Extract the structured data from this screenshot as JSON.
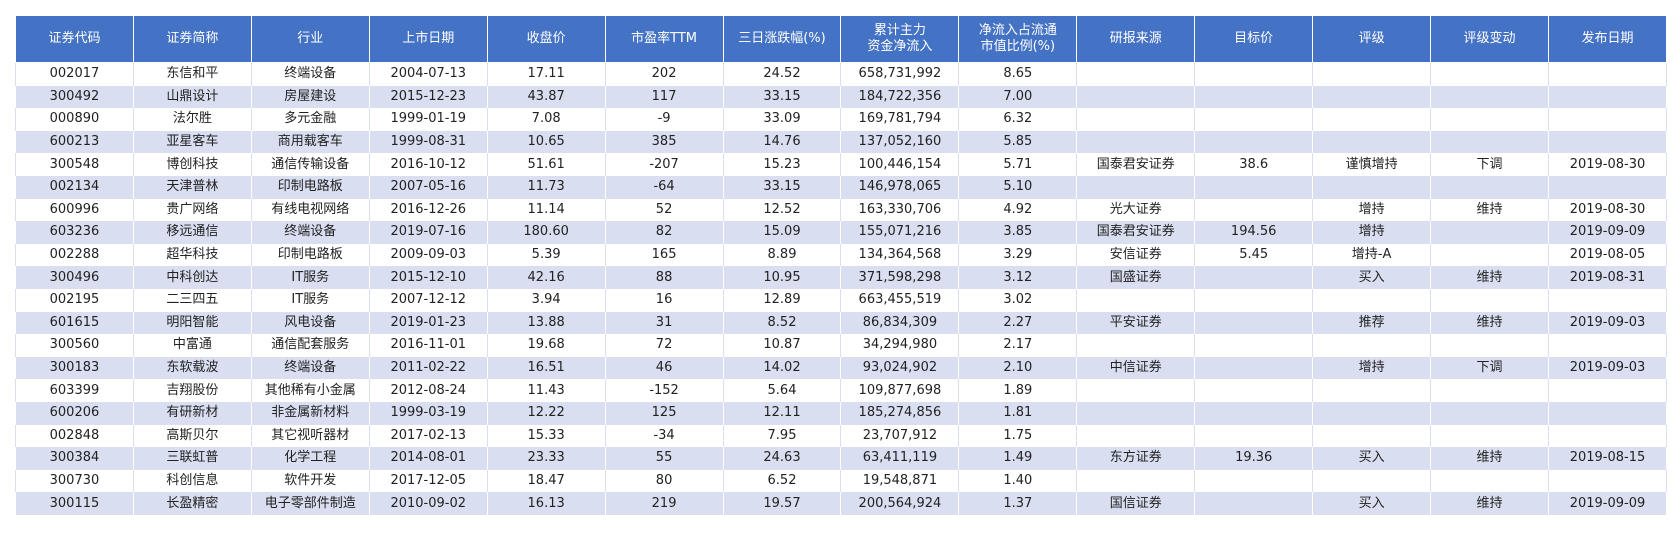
{
  "table": {
    "headers": [
      "证券代码",
      "证券简称",
      "行业",
      "上市日期",
      "收盘价",
      "市盈率TTM",
      "三日涨跌幅(%)",
      "累计主力\n资金净流入",
      "净流入占流通\n市值比例(%)",
      "研报来源",
      "目标价",
      "评级",
      "评级变动",
      "发布日期"
    ],
    "rows": [
      [
        "002017",
        "东信和平",
        "终端设备",
        "2004-07-13",
        "17.11",
        "202",
        "24.52",
        "658,731,992",
        "8.65",
        "",
        "",
        "",
        "",
        ""
      ],
      [
        "300492",
        "山鼎设计",
        "房屋建设",
        "2015-12-23",
        "43.87",
        "117",
        "33.15",
        "184,722,356",
        "7.00",
        "",
        "",
        "",
        "",
        ""
      ],
      [
        "000890",
        "法尔胜",
        "多元金融",
        "1999-01-19",
        "7.08",
        "-9",
        "33.09",
        "169,781,794",
        "6.32",
        "",
        "",
        "",
        "",
        ""
      ],
      [
        "600213",
        "亚星客车",
        "商用载客车",
        "1999-08-31",
        "10.65",
        "385",
        "14.76",
        "137,052,160",
        "5.85",
        "",
        "",
        "",
        "",
        ""
      ],
      [
        "300548",
        "博创科技",
        "通信传输设备",
        "2016-10-12",
        "51.61",
        "-207",
        "15.23",
        "100,446,154",
        "5.71",
        "国泰君安证券",
        "38.6",
        "谨慎增持",
        "下调",
        "2019-08-30"
      ],
      [
        "002134",
        "天津普林",
        "印制电路板",
        "2007-05-16",
        "11.73",
        "-64",
        "33.15",
        "146,978,065",
        "5.10",
        "",
        "",
        "",
        "",
        ""
      ],
      [
        "600996",
        "贵广网络",
        "有线电视网络",
        "2016-12-26",
        "11.14",
        "52",
        "12.52",
        "163,330,706",
        "4.92",
        "光大证券",
        "",
        "增持",
        "维持",
        "2019-08-30"
      ],
      [
        "603236",
        "移远通信",
        "终端设备",
        "2019-07-16",
        "180.60",
        "82",
        "15.09",
        "155,071,216",
        "3.85",
        "国泰君安证券",
        "194.56",
        "增持",
        "",
        "2019-09-09"
      ],
      [
        "002288",
        "超华科技",
        "印制电路板",
        "2009-09-03",
        "5.39",
        "165",
        "8.89",
        "134,364,568",
        "3.29",
        "安信证券",
        "5.45",
        "增持-A",
        "",
        "2019-08-05"
      ],
      [
        "300496",
        "中科创达",
        "IT服务",
        "2015-12-10",
        "42.16",
        "88",
        "10.95",
        "371,598,298",
        "3.12",
        "国盛证券",
        "",
        "买入",
        "维持",
        "2019-08-31"
      ],
      [
        "002195",
        "二三四五",
        "IT服务",
        "2007-12-12",
        "3.94",
        "16",
        "12.89",
        "663,455,519",
        "3.02",
        "",
        "",
        "",
        "",
        ""
      ],
      [
        "601615",
        "明阳智能",
        "风电设备",
        "2019-01-23",
        "13.88",
        "31",
        "8.52",
        "86,834,309",
        "2.27",
        "平安证券",
        "",
        "推荐",
        "维持",
        "2019-09-03"
      ],
      [
        "300560",
        "中富通",
        "通信配套服务",
        "2016-11-01",
        "19.68",
        "72",
        "10.87",
        "34,294,980",
        "2.17",
        "",
        "",
        "",
        "",
        ""
      ],
      [
        "300183",
        "东软载波",
        "终端设备",
        "2011-02-22",
        "16.51",
        "46",
        "14.02",
        "93,024,902",
        "2.10",
        "中信证券",
        "",
        "增持",
        "下调",
        "2019-09-03"
      ],
      [
        "603399",
        "吉翔股份",
        "其他稀有小金属",
        "2012-08-24",
        "11.43",
        "-152",
        "5.64",
        "109,877,698",
        "1.89",
        "",
        "",
        "",
        "",
        ""
      ],
      [
        "600206",
        "有研新材",
        "非金属新材料",
        "1999-03-19",
        "12.22",
        "125",
        "12.11",
        "185,274,856",
        "1.81",
        "",
        "",
        "",
        "",
        ""
      ],
      [
        "002848",
        "高斯贝尔",
        "其它视听器材",
        "2017-02-13",
        "15.33",
        "-34",
        "7.95",
        "23,707,912",
        "1.75",
        "",
        "",
        "",
        "",
        ""
      ],
      [
        "300384",
        "三联虹普",
        "化学工程",
        "2014-08-01",
        "23.33",
        "55",
        "24.63",
        "63,411,119",
        "1.49",
        "东方证券",
        "19.36",
        "买入",
        "维持",
        "2019-08-15"
      ],
      [
        "300730",
        "科创信息",
        "软件开发",
        "2017-12-05",
        "18.47",
        "80",
        "6.52",
        "19,548,871",
        "1.40",
        "",
        "",
        "",
        "",
        ""
      ],
      [
        "300115",
        "长盈精密",
        "电子零部件制造",
        "2010-09-02",
        "16.13",
        "219",
        "19.57",
        "200,564,924",
        "1.37",
        "国信证券",
        "",
        "买入",
        "维持",
        "2019-09-09"
      ]
    ]
  }
}
